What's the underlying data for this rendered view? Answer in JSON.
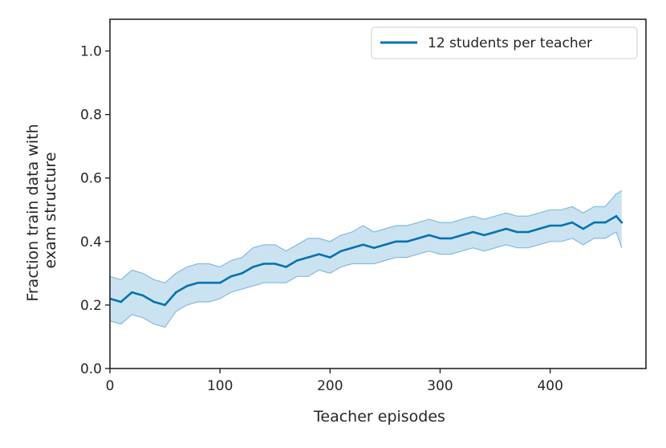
{
  "chart_data": {
    "type": "line",
    "title": "",
    "xlabel": "Teacher episodes",
    "ylabel_lines": [
      "Fraction train data with",
      "exam structure"
    ],
    "xlim": [
      0,
      487
    ],
    "ylim": [
      0,
      1.1
    ],
    "x_ticks": [
      0,
      100,
      200,
      300,
      400
    ],
    "x_tick_labels": [
      "0",
      "100",
      "200",
      "300",
      "400"
    ],
    "y_ticks": [
      0.0,
      0.2,
      0.4,
      0.6,
      0.8,
      1.0
    ],
    "y_tick_labels": [
      "0.0",
      "0.2",
      "0.4",
      "0.6",
      "0.8",
      "1.0"
    ],
    "grid": false,
    "legend_position": "top-right",
    "series": [
      {
        "name": "12 students per teacher",
        "color": "#0072b2",
        "band_color": "#6baed6",
        "x": [
          0,
          10,
          20,
          30,
          40,
          50,
          60,
          70,
          80,
          90,
          100,
          110,
          120,
          130,
          140,
          150,
          160,
          170,
          180,
          190,
          200,
          210,
          220,
          230,
          240,
          250,
          260,
          270,
          280,
          290,
          300,
          310,
          320,
          330,
          340,
          350,
          360,
          370,
          380,
          390,
          400,
          410,
          420,
          430,
          440,
          450,
          460,
          465
        ],
        "values": [
          0.22,
          0.21,
          0.24,
          0.23,
          0.21,
          0.2,
          0.24,
          0.26,
          0.27,
          0.27,
          0.27,
          0.29,
          0.3,
          0.32,
          0.33,
          0.33,
          0.32,
          0.34,
          0.35,
          0.36,
          0.35,
          0.37,
          0.38,
          0.39,
          0.38,
          0.39,
          0.4,
          0.4,
          0.41,
          0.42,
          0.41,
          0.41,
          0.42,
          0.43,
          0.42,
          0.43,
          0.44,
          0.43,
          0.43,
          0.44,
          0.45,
          0.45,
          0.46,
          0.44,
          0.46,
          0.46,
          0.48,
          0.46
        ],
        "lower": [
          0.15,
          0.14,
          0.17,
          0.16,
          0.14,
          0.13,
          0.18,
          0.2,
          0.21,
          0.21,
          0.22,
          0.24,
          0.25,
          0.26,
          0.27,
          0.27,
          0.27,
          0.29,
          0.29,
          0.31,
          0.3,
          0.32,
          0.33,
          0.33,
          0.33,
          0.34,
          0.35,
          0.35,
          0.36,
          0.37,
          0.36,
          0.36,
          0.37,
          0.38,
          0.37,
          0.38,
          0.39,
          0.38,
          0.38,
          0.39,
          0.4,
          0.4,
          0.41,
          0.39,
          0.41,
          0.41,
          0.43,
          0.38
        ],
        "upper": [
          0.29,
          0.28,
          0.31,
          0.3,
          0.28,
          0.27,
          0.3,
          0.32,
          0.33,
          0.33,
          0.32,
          0.34,
          0.35,
          0.38,
          0.39,
          0.39,
          0.37,
          0.39,
          0.41,
          0.41,
          0.4,
          0.42,
          0.43,
          0.45,
          0.43,
          0.44,
          0.45,
          0.45,
          0.46,
          0.47,
          0.46,
          0.46,
          0.47,
          0.48,
          0.47,
          0.48,
          0.49,
          0.48,
          0.48,
          0.49,
          0.5,
          0.5,
          0.51,
          0.49,
          0.51,
          0.51,
          0.55,
          0.56
        ]
      }
    ]
  }
}
